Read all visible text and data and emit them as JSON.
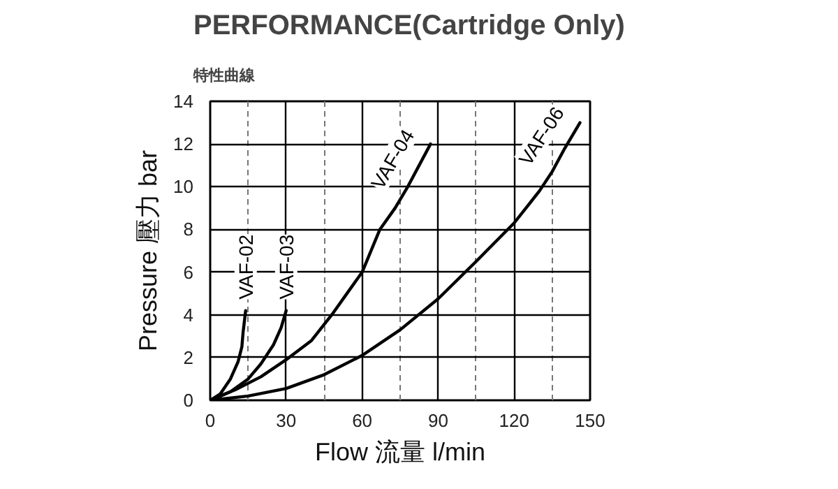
{
  "chart_data": {
    "type": "line",
    "title": "PERFORMANCE(Cartridge Only)",
    "subtitle": "特性曲線",
    "xlabel": "Flow 流量 l/min",
    "ylabel": "Pressure 壓力 bar",
    "xlim": [
      0,
      150
    ],
    "ylim": [
      0,
      14
    ],
    "xticks": [
      0,
      30,
      60,
      90,
      120,
      150
    ],
    "yticks": [
      0,
      2,
      4,
      6,
      8,
      10,
      12,
      14
    ],
    "grid": true,
    "line_style": "solid",
    "series": [
      {
        "name": "VAF-02",
        "color": "#000000",
        "x": [
          0,
          4,
          8,
          11,
          12.5,
          13,
          14
        ],
        "values": [
          0,
          0.3,
          1,
          1.8,
          2.5,
          3.2,
          4.2
        ]
      },
      {
        "name": "VAF-03",
        "color": "#000000",
        "x": [
          0,
          8,
          15,
          20,
          25,
          28,
          30
        ],
        "values": [
          0,
          0.4,
          1,
          1.7,
          2.6,
          3.4,
          4.2
        ]
      },
      {
        "name": "VAF-04",
        "color": "#000000",
        "x": [
          0,
          10,
          20,
          30,
          40,
          48,
          54,
          60,
          67,
          73,
          78,
          87
        ],
        "values": [
          0,
          0.5,
          1.1,
          1.9,
          2.8,
          4,
          5,
          6,
          8,
          9,
          10,
          12
        ]
      },
      {
        "name": "VAF-06",
        "color": "#000000",
        "x": [
          0,
          15,
          30,
          45,
          60,
          75,
          90,
          105,
          120,
          130,
          135,
          140,
          146
        ],
        "values": [
          0,
          0.2,
          0.55,
          1.2,
          2.1,
          3.3,
          4.75,
          6.5,
          8.3,
          9.8,
          10.7,
          11.8,
          13
        ]
      }
    ]
  }
}
